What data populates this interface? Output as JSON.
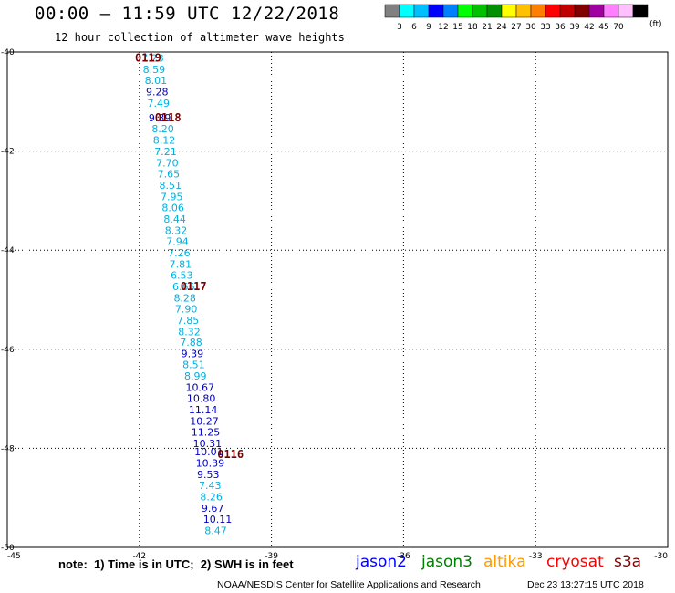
{
  "header": {
    "title": "00:00 – 11:59 UTC 12/22/2018",
    "subtitle": "12 hour collection of altimeter wave heights"
  },
  "colorbar": {
    "colors": [
      "#808080",
      "#00ffff",
      "#00bfff",
      "#0000ff",
      "#0080ff",
      "#00ff00",
      "#00c000",
      "#009000",
      "#ffff00",
      "#ffc000",
      "#ff8000",
      "#ff0000",
      "#c00000",
      "#800000",
      "#a000a0",
      "#ff80ff",
      "#ffc0ff",
      "#000000"
    ],
    "labels": [
      "3",
      "6",
      "9",
      "12",
      "15",
      "18",
      "21",
      "24",
      "27",
      "30",
      "33",
      "36",
      "39",
      "42",
      "45",
      "70"
    ],
    "unit": "(ft)"
  },
  "chart_data": {
    "type": "scatter",
    "x_ticks": [
      "-45",
      "-42",
      "-39",
      "-36",
      "-33",
      "-30"
    ],
    "y_ticks": [
      "-40",
      "-42",
      "-44",
      "-46",
      "-48",
      "-50"
    ],
    "xlim": [
      -45,
      -30
    ],
    "ylim": [
      -50,
      -40
    ],
    "grid": true,
    "points": [
      {
        "x": -41.95,
        "y": -40.12,
        "v": "7.23",
        "c": "#00b0e0"
      },
      {
        "x": -41.92,
        "y": -40.35,
        "v": "8.59",
        "c": "#00b0e0"
      },
      {
        "x": -41.88,
        "y": -40.57,
        "v": "8.01",
        "c": "#00b0e0"
      },
      {
        "x": -41.85,
        "y": -40.8,
        "v": "9.28",
        "c": "#0000c0"
      },
      {
        "x": -41.82,
        "y": -41.03,
        "v": "7.49",
        "c": "#00b0e0"
      },
      {
        "x": -41.79,
        "y": -41.33,
        "v": "9.39",
        "c": "#0000c0"
      },
      {
        "x": -41.72,
        "y": -41.55,
        "v": "8.20",
        "c": "#00b0e0"
      },
      {
        "x": -41.69,
        "y": -41.78,
        "v": "8.12",
        "c": "#00b0e0"
      },
      {
        "x": -41.66,
        "y": -42.01,
        "v": "7.21",
        "c": "#00b0e0"
      },
      {
        "x": -41.62,
        "y": -42.24,
        "v": "7.70",
        "c": "#00b0e0"
      },
      {
        "x": -41.59,
        "y": -42.46,
        "v": "7.65",
        "c": "#00b0e0"
      },
      {
        "x": -41.55,
        "y": -42.69,
        "v": "8.51",
        "c": "#00b0e0"
      },
      {
        "x": -41.52,
        "y": -42.92,
        "v": "7.95",
        "c": "#00b0e0"
      },
      {
        "x": -41.49,
        "y": -43.14,
        "v": "8.06",
        "c": "#00b0e0"
      },
      {
        "x": -41.45,
        "y": -43.37,
        "v": "8.44",
        "c": "#00b0e0"
      },
      {
        "x": -41.42,
        "y": -43.6,
        "v": "8.32",
        "c": "#00b0e0"
      },
      {
        "x": -41.39,
        "y": -43.82,
        "v": "7.94",
        "c": "#00b0e0"
      },
      {
        "x": -41.35,
        "y": -44.05,
        "v": "7.26",
        "c": "#00b0e0"
      },
      {
        "x": -41.32,
        "y": -44.28,
        "v": "7.81",
        "c": "#00b0e0"
      },
      {
        "x": -41.29,
        "y": -44.5,
        "v": "6.53",
        "c": "#00b0e0"
      },
      {
        "x": -41.25,
        "y": -44.73,
        "v": "6.66",
        "c": "#00b0e0"
      },
      {
        "x": -41.22,
        "y": -44.96,
        "v": "8.28",
        "c": "#00b0e0"
      },
      {
        "x": -41.19,
        "y": -45.18,
        "v": "7.90",
        "c": "#00b0e0"
      },
      {
        "x": -41.15,
        "y": -45.41,
        "v": "7.85",
        "c": "#00b0e0"
      },
      {
        "x": -41.12,
        "y": -45.64,
        "v": "8.32",
        "c": "#00b0e0"
      },
      {
        "x": -41.08,
        "y": -45.86,
        "v": "7.88",
        "c": "#00b0e0"
      },
      {
        "x": -41.05,
        "y": -46.09,
        "v": "9.39",
        "c": "#0000c0"
      },
      {
        "x": -41.02,
        "y": -46.31,
        "v": "8.51",
        "c": "#00b0e0"
      },
      {
        "x": -40.98,
        "y": -46.54,
        "v": "8.99",
        "c": "#00b0e0"
      },
      {
        "x": -40.95,
        "y": -46.77,
        "v": "10.67",
        "c": "#0000c0"
      },
      {
        "x": -40.92,
        "y": -46.99,
        "v": "10.80",
        "c": "#0000c0"
      },
      {
        "x": -40.88,
        "y": -47.22,
        "v": "11.14",
        "c": "#0000c0"
      },
      {
        "x": -40.85,
        "y": -47.45,
        "v": "10.27",
        "c": "#0000c0"
      },
      {
        "x": -40.82,
        "y": -47.67,
        "v": "11.25",
        "c": "#0000c0"
      },
      {
        "x": -40.78,
        "y": -47.9,
        "v": "10.31",
        "c": "#0000c0"
      },
      {
        "x": -40.75,
        "y": -48.07,
        "v": "10.01",
        "c": "#0000c0"
      },
      {
        "x": -40.72,
        "y": -48.3,
        "v": "10.39",
        "c": "#0000c0"
      },
      {
        "x": -40.69,
        "y": -48.53,
        "v": "9.53",
        "c": "#0000c0"
      },
      {
        "x": -40.65,
        "y": -48.75,
        "v": "7.43",
        "c": "#00b0e0"
      },
      {
        "x": -40.62,
        "y": -48.98,
        "v": "8.26",
        "c": "#00b0e0"
      },
      {
        "x": -40.59,
        "y": -49.21,
        "v": "9.67",
        "c": "#0000c0"
      },
      {
        "x": -40.55,
        "y": -49.43,
        "v": "10.11",
        "c": "#0000c0"
      },
      {
        "x": -40.52,
        "y": -49.66,
        "v": "8.47",
        "c": "#00b0e0"
      }
    ],
    "pass_labels": [
      {
        "x": -42.1,
        "y": -40.12,
        "text": "0119"
      },
      {
        "x": -41.65,
        "y": -41.33,
        "text": "0118"
      },
      {
        "x": -41.07,
        "y": -44.73,
        "text": "0117"
      },
      {
        "x": -40.23,
        "y": -48.12,
        "text": "0116"
      }
    ]
  },
  "note": "note:  1) Time is in UTC;  2) SWH is in feet",
  "satellites": [
    {
      "name": "jason2",
      "color": "#0000ff"
    },
    {
      "name": "jason3",
      "color": "#008000"
    },
    {
      "name": "altika",
      "color": "#ff9900"
    },
    {
      "name": "cryosat",
      "color": "#ff0000"
    },
    {
      "name": "s3a",
      "color": "#800000"
    }
  ],
  "footer": {
    "org": "NOAA/NESDIS Center for Satellite Applications and Research",
    "timestamp": "Dec 23 13:27:15 UTC 2018"
  }
}
